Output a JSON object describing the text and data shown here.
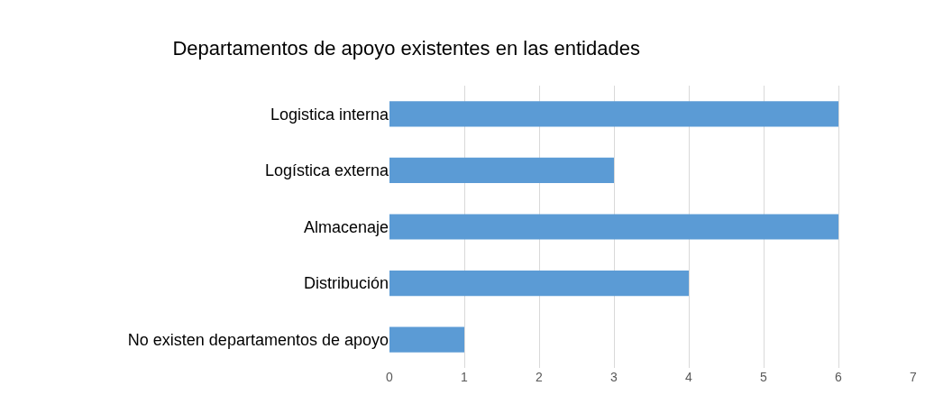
{
  "chart_data": {
    "type": "bar",
    "orientation": "horizontal",
    "title": "Departamentos de apoyo existentes en las entidades",
    "categories": [
      "Logistica interna",
      "Logística externa",
      "Almacenaje",
      "Distribución",
      "No existen departamentos de apoyo"
    ],
    "values": [
      6,
      3,
      6,
      4,
      1
    ],
    "color": "#5b9bd5",
    "xlim": [
      0,
      7
    ],
    "xticks": [
      0,
      1,
      2,
      3,
      4,
      5,
      6,
      7
    ],
    "grid": "x",
    "legend": false
  }
}
